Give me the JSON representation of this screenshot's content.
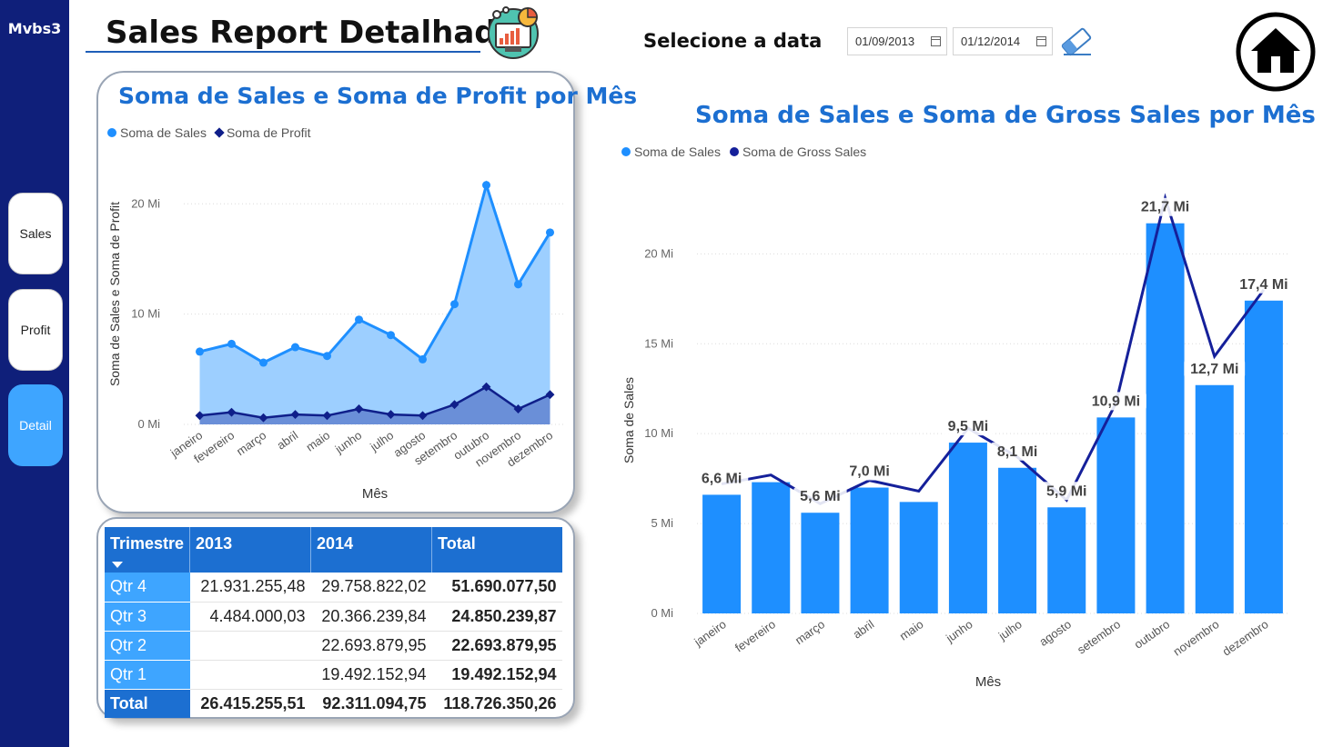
{
  "nav": {
    "brand": "Mvbs3",
    "items": [
      {
        "label": "Sales",
        "active": false
      },
      {
        "label": "Profit",
        "active": false
      },
      {
        "label": "Detail",
        "active": true
      }
    ]
  },
  "header": {
    "title": "Sales Report Detalhado",
    "date_label": "Selecione a data",
    "date_start": "01/09/2013",
    "date_end": "01/12/2014",
    "icons": [
      "analytics-icon",
      "eraser-icon",
      "home-icon"
    ]
  },
  "colors": {
    "nav_bg": "#0f1f7a",
    "accent": "#1c6fd1",
    "sales": "#1e8fff",
    "sales_area": "#9dcfff",
    "profit": "#0f1f8a",
    "gross": "#15209a",
    "active_button": "#3ea5ff"
  },
  "months": [
    "janeiro",
    "fevereiro",
    "março",
    "abril",
    "maio",
    "junho",
    "julho",
    "agosto",
    "setembro",
    "outubro",
    "novembro",
    "dezembro"
  ],
  "chart_data": [
    {
      "type": "area",
      "title": "Soma de Sales e Soma de Profit por Mês",
      "xlabel": "Mês",
      "ylabel": "Soma de Sales e Soma de Profit",
      "ylim": [
        0,
        22
      ],
      "yticks": [
        "0 Mi",
        "10 Mi",
        "20 Mi"
      ],
      "legend": [
        "Soma de  Sales",
        "Soma de Profit"
      ],
      "legend_position": "top-left",
      "categories": [
        "janeiro",
        "fevereiro",
        "março",
        "abril",
        "maio",
        "junho",
        "julho",
        "agosto",
        "setembro",
        "outubro",
        "novembro",
        "dezembro"
      ],
      "series": [
        {
          "name": "Soma de  Sales",
          "values": [
            6.6,
            7.3,
            5.6,
            7.0,
            6.2,
            9.5,
            8.1,
            5.9,
            10.9,
            21.7,
            12.7,
            17.4
          ]
        },
        {
          "name": "Soma de Profit",
          "values": [
            0.8,
            1.1,
            0.6,
            0.9,
            0.8,
            1.4,
            0.9,
            0.8,
            1.8,
            3.4,
            1.4,
            2.7
          ]
        }
      ]
    },
    {
      "type": "bar",
      "title": "Soma de Sales e Soma de Gross Sales por Mês",
      "xlabel": "Mês",
      "ylabel": "Soma de Sales",
      "ylim": [
        0,
        23
      ],
      "yticks": [
        "0 Mi",
        "5 Mi",
        "10 Mi",
        "15 Mi",
        "20 Mi"
      ],
      "legend": [
        "Soma de  Sales",
        "Soma de Gross Sales"
      ],
      "legend_position": "top-left",
      "categories": [
        "janeiro",
        "fevereiro",
        "março",
        "abril",
        "maio",
        "junho",
        "julho",
        "agosto",
        "setembro",
        "outubro",
        "novembro",
        "dezembro"
      ],
      "series": [
        {
          "name": "Soma de  Sales",
          "values": [
            6.6,
            7.3,
            5.6,
            7.0,
            6.2,
            9.5,
            8.1,
            5.9,
            10.9,
            21.7,
            12.7,
            17.4
          ]
        },
        {
          "name": "Soma de Gross Sales",
          "values": [
            7.2,
            7.7,
            6.1,
            7.4,
            6.8,
            10.3,
            8.7,
            6.3,
            11.7,
            23.1,
            14.3,
            18.0
          ]
        }
      ],
      "data_labels": [
        "6,6 Mi",
        "",
        "5,6 Mi",
        "7,0 Mi",
        "",
        "9,5 Mi",
        "8,1 Mi",
        "5,9 Mi",
        "10,9 Mi",
        "21,7 Mi",
        "12,7 Mi",
        "17,4 Mi"
      ]
    }
  ],
  "table": {
    "headers": [
      "Trimestre",
      "2013",
      "2014",
      "Total"
    ],
    "rows": [
      {
        "q": "Qtr 4",
        "y2013": "21.931.255,48",
        "y2014": "29.758.822,02",
        "total": "51.690.077,50"
      },
      {
        "q": "Qtr 3",
        "y2013": "4.484.000,03",
        "y2014": "20.366.239,84",
        "total": "24.850.239,87"
      },
      {
        "q": "Qtr 2",
        "y2013": "",
        "y2014": "22.693.879,95",
        "total": "22.693.879,95"
      },
      {
        "q": "Qtr 1",
        "y2013": "",
        "y2014": "19.492.152,94",
        "total": "19.492.152,94"
      }
    ],
    "total_row": {
      "q": "Total",
      "y2013": "26.415.255,51",
      "y2014": "92.311.094,75",
      "total": "118.726.350,26"
    }
  }
}
